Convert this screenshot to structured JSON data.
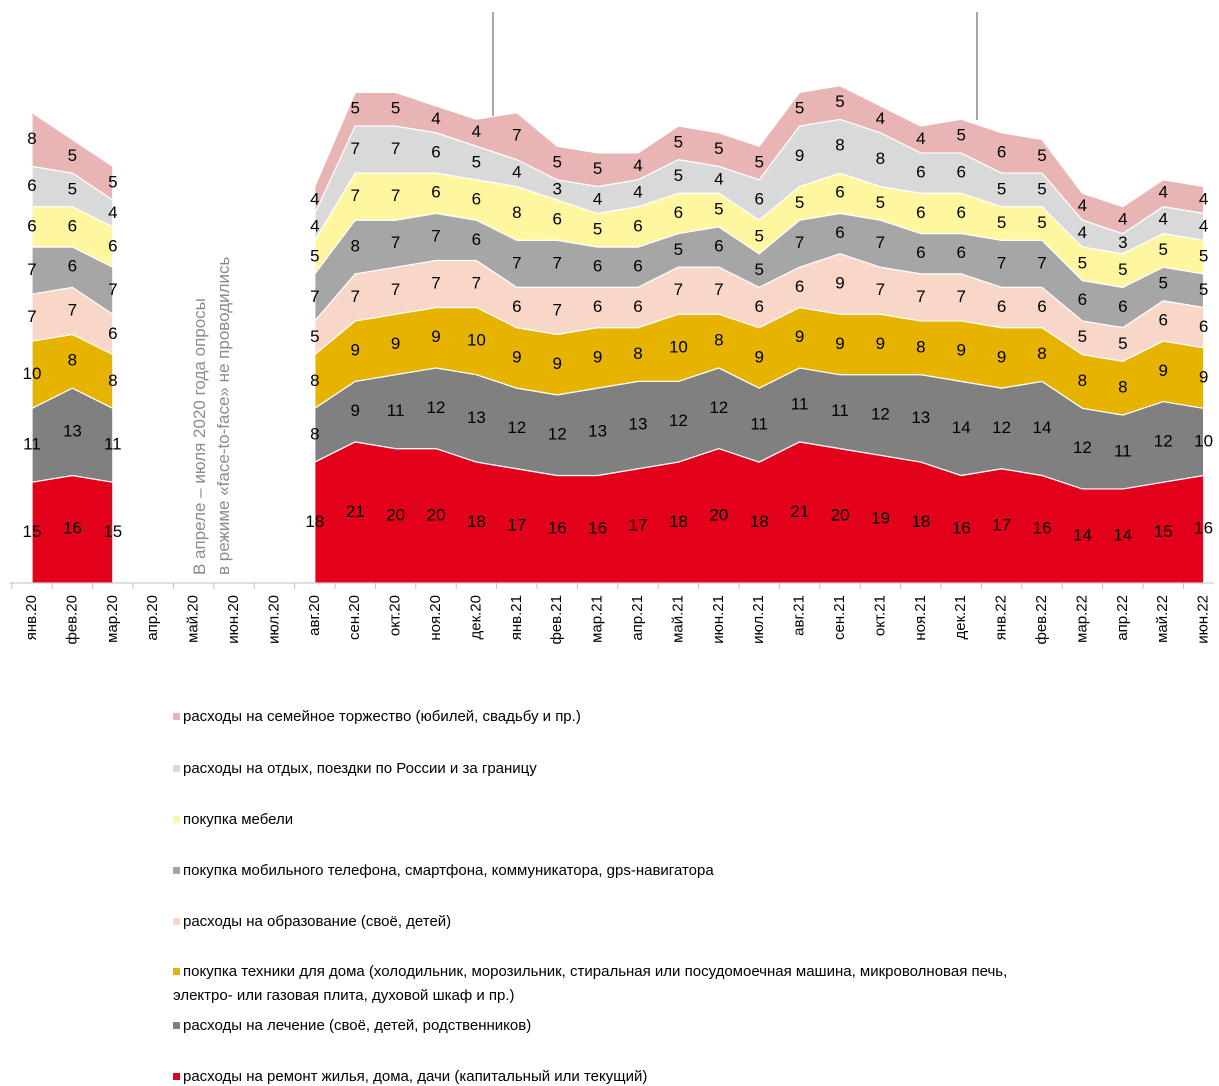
{
  "chart_data": {
    "type": "stacked_area",
    "annotations": [
      "В апреле – июля 2020 года опросы",
      "в режиме «face-to-face» не проводились"
    ],
    "categories": [
      "янв.20",
      "фев.20",
      "мар.20",
      "апр.20",
      "май.20",
      "июн.20",
      "июл.20",
      "авг.20",
      "сен.20",
      "окт.20",
      "ноя.20",
      "дек.20",
      "янв.21",
      "фев.21",
      "мар.21",
      "апр.21",
      "май.21",
      "июн.21",
      "июл.21",
      "авг.21",
      "сен.21",
      "окт.21",
      "ноя.21",
      "дек.21",
      "янв.22",
      "фев.22",
      "мар.22",
      "апр.22",
      "май.22",
      "июн.22"
    ],
    "series": [
      {
        "name": "расходы на ремонт жилья, дома, дачи (капитальный или текущий)",
        "color": "#e2001a",
        "values": [
          15,
          16,
          15,
          null,
          null,
          null,
          null,
          18,
          21,
          20,
          20,
          18,
          17,
          16,
          16,
          17,
          18,
          20,
          18,
          21,
          20,
          19,
          18,
          16,
          17,
          16,
          14,
          14,
          15,
          16
        ]
      },
      {
        "name": "расходы на лечение (своё, детей, родственников)",
        "color": "#808080",
        "values": [
          11,
          13,
          11,
          null,
          null,
          null,
          null,
          8,
          9,
          11,
          12,
          13,
          12,
          12,
          13,
          13,
          12,
          12,
          11,
          11,
          11,
          12,
          13,
          14,
          12,
          14,
          12,
          11,
          12,
          10
        ]
      },
      {
        "name": "покупка техники для дома (холодильник, морозильник, стиральная или посудомоечная машина, микроволновая печь, электро- или газовая плита, духовой шкаф и пр.)",
        "color": "#e6b400",
        "values": [
          10,
          8,
          8,
          null,
          null,
          null,
          null,
          8,
          9,
          9,
          9,
          10,
          9,
          9,
          9,
          8,
          10,
          8,
          9,
          9,
          9,
          9,
          8,
          9,
          9,
          8,
          8,
          8,
          9,
          9
        ]
      },
      {
        "name": "расходы на образование (своё, детей)",
        "color": "#f8d6c8",
        "values": [
          7,
          7,
          6,
          null,
          null,
          null,
          null,
          5,
          7,
          7,
          7,
          7,
          6,
          7,
          6,
          6,
          7,
          7,
          6,
          6,
          9,
          7,
          7,
          7,
          6,
          6,
          5,
          5,
          6,
          6
        ]
      },
      {
        "name": "покупка мобильного телефона, смартфона, коммуникатора, gps-навигатора",
        "color": "#a6a6a6",
        "values": [
          7,
          6,
          7,
          null,
          null,
          null,
          null,
          7,
          8,
          7,
          7,
          6,
          7,
          7,
          6,
          6,
          5,
          6,
          5,
          7,
          6,
          7,
          6,
          6,
          7,
          7,
          6,
          6,
          5,
          5
        ]
      },
      {
        "name": "покупка мебели",
        "color": "#fff7a0",
        "values": [
          6,
          6,
          6,
          null,
          null,
          null,
          null,
          5,
          7,
          7,
          6,
          6,
          8,
          6,
          5,
          6,
          6,
          5,
          5,
          5,
          6,
          5,
          6,
          6,
          5,
          5,
          5,
          5,
          5,
          5
        ]
      },
      {
        "name": "расходы на отдых, поездки по России и за границу",
        "color": "#d9d9d9",
        "values": [
          6,
          5,
          4,
          null,
          null,
          null,
          null,
          4,
          7,
          7,
          6,
          5,
          4,
          3,
          4,
          4,
          5,
          4,
          6,
          9,
          8,
          8,
          6,
          6,
          5,
          5,
          4,
          3,
          4,
          4
        ]
      },
      {
        "name": "расходы на семейное торжество (юбилей, свадьбу и пр.)",
        "color": "#e8b4b4",
        "values": [
          8,
          5,
          5,
          null,
          null,
          null,
          null,
          4,
          5,
          5,
          4,
          4,
          7,
          5,
          5,
          4,
          5,
          5,
          5,
          5,
          5,
          4,
          4,
          5,
          6,
          5,
          4,
          4,
          4,
          4
        ]
      }
    ]
  }
}
